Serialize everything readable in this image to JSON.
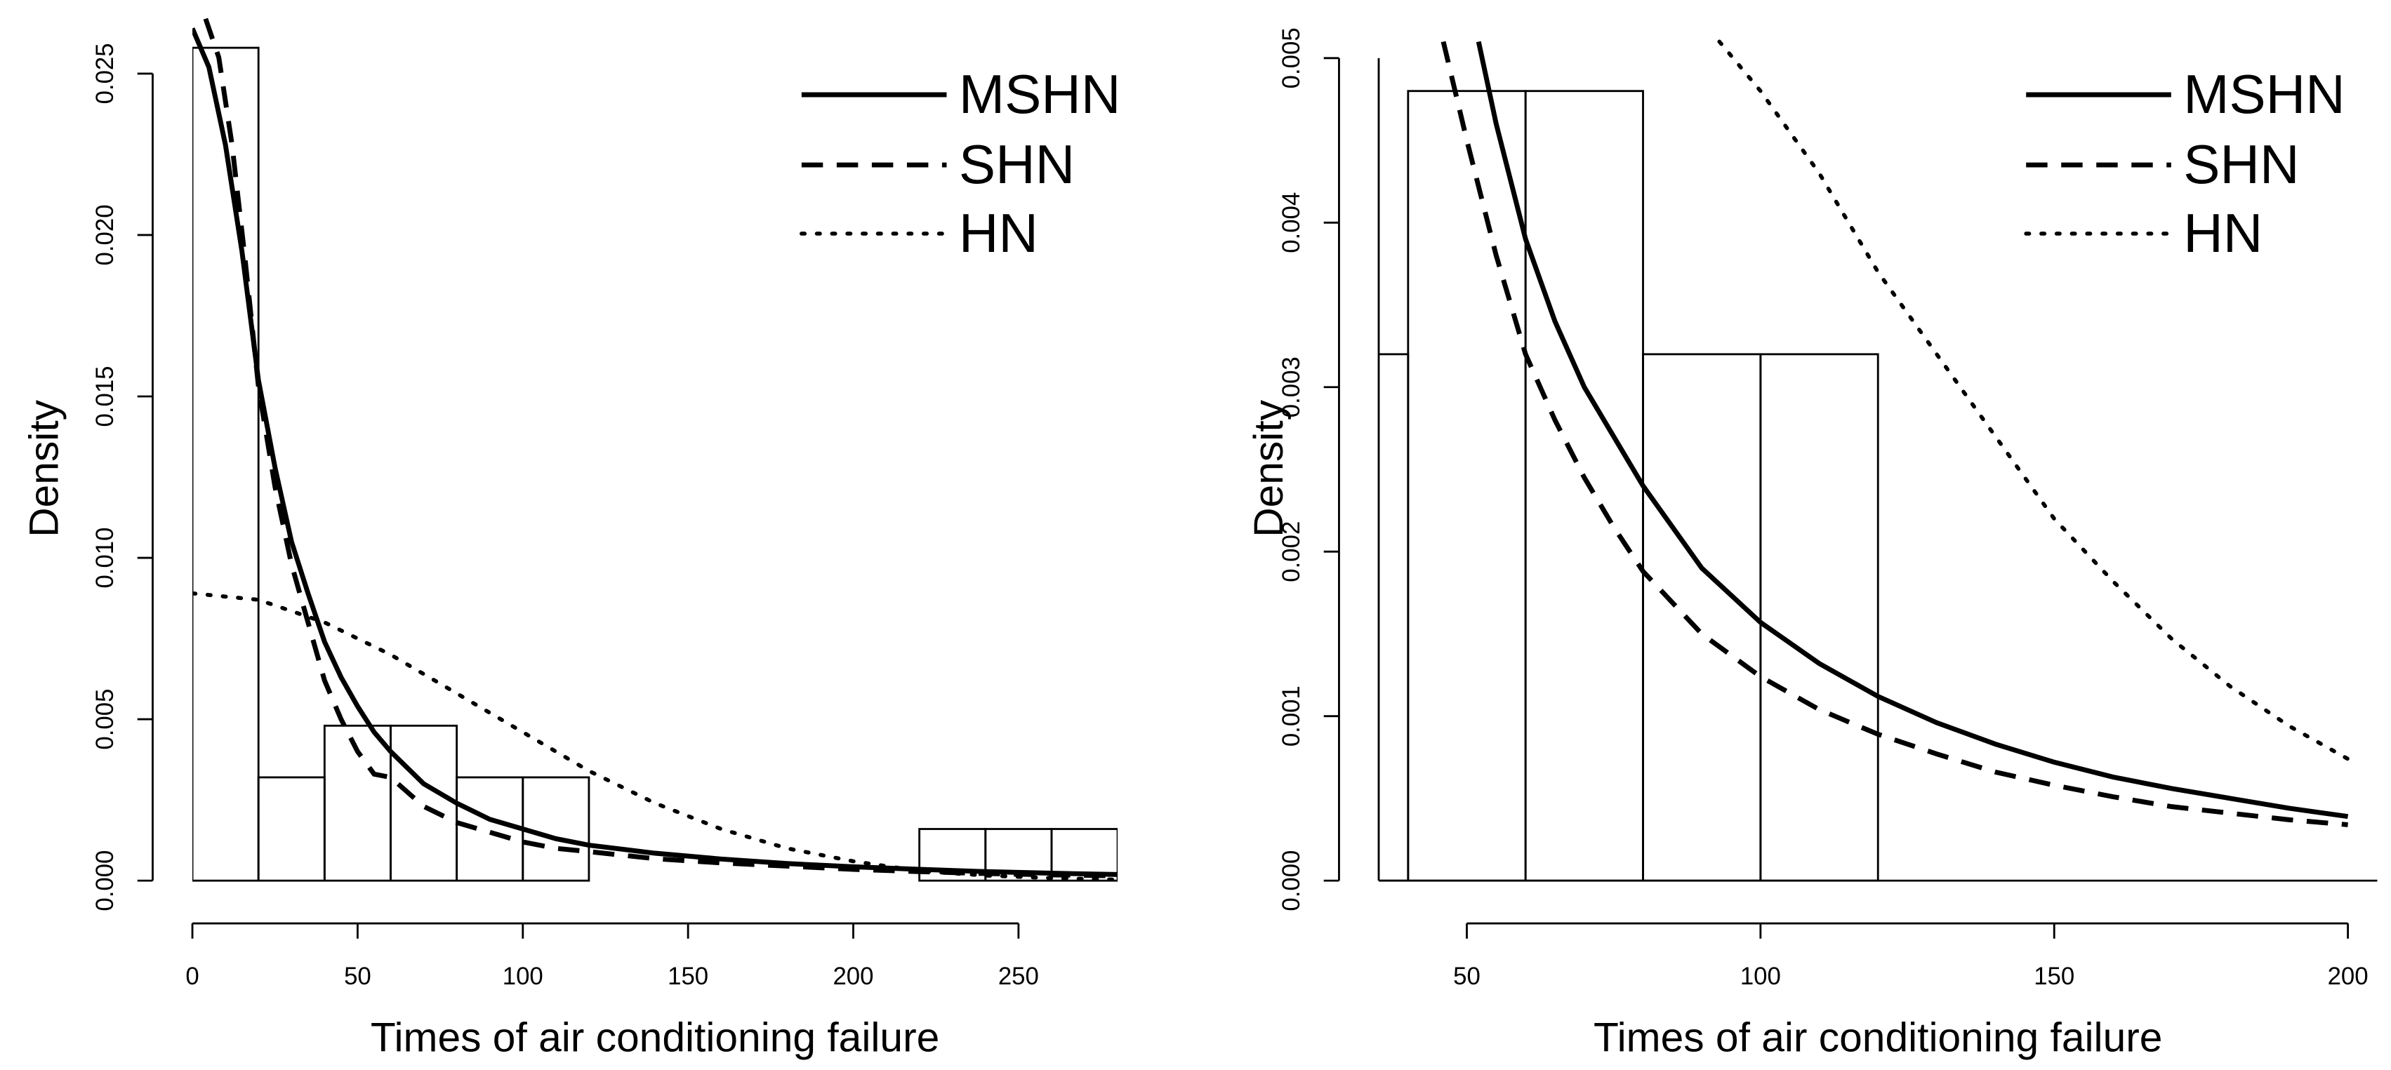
{
  "chart_data": [
    {
      "type": "histogram",
      "xlabel": "Times of air conditioning failure",
      "ylabel": "Density",
      "xlim": [
        0,
        280
      ],
      "ylim": [
        0,
        0.026
      ],
      "xticks": [
        "0",
        "50",
        "100",
        "150",
        "200",
        "250"
      ],
      "yticks": [
        "0.000",
        "0.005",
        "0.010",
        "0.015",
        "0.020",
        "0.025"
      ],
      "bins": [
        {
          "start": 0,
          "end": 20,
          "density": 0.0258
        },
        {
          "start": 20,
          "end": 40,
          "density": 0.0032
        },
        {
          "start": 40,
          "end": 60,
          "density": 0.0048
        },
        {
          "start": 60,
          "end": 80,
          "density": 0.0048
        },
        {
          "start": 80,
          "end": 100,
          "density": 0.0032
        },
        {
          "start": 100,
          "end": 120,
          "density": 0.0032
        },
        {
          "start": 220,
          "end": 240,
          "density": 0.0016
        },
        {
          "start": 240,
          "end": 260,
          "density": 0.0016
        },
        {
          "start": 260,
          "end": 280,
          "density": 0.0016
        }
      ],
      "series": [
        {
          "name": "MSHN",
          "style": "solid",
          "x": [
            0,
            5,
            10,
            15,
            20,
            25,
            30,
            35,
            40,
            45,
            50,
            55,
            60,
            70,
            80,
            90,
            100,
            110,
            120,
            140,
            160,
            180,
            200,
            220,
            240,
            260,
            280
          ],
          "y": [
            0.0264,
            0.0252,
            0.0228,
            0.0195,
            0.0155,
            0.0128,
            0.0105,
            0.0089,
            0.0074,
            0.0063,
            0.0054,
            0.0046,
            0.004,
            0.003,
            0.0024,
            0.0019,
            0.0016,
            0.0013,
            0.0011,
            0.00085,
            0.00067,
            0.00053,
            0.00043,
            0.00035,
            0.00028,
            0.00023,
            0.00019
          ]
        },
        {
          "name": "SHN",
          "style": "dashed",
          "x": [
            4,
            8,
            12,
            16,
            20,
            25,
            30,
            35,
            40,
            45,
            50,
            55,
            60,
            70,
            80,
            90,
            100,
            110,
            120,
            140,
            160,
            180,
            200,
            220,
            240,
            260,
            280
          ],
          "y": [
            0.0267,
            0.0255,
            0.0228,
            0.0192,
            0.0153,
            0.0122,
            0.0098,
            0.008,
            0.0062,
            0.005,
            0.004,
            0.0033,
            0.0032,
            0.0023,
            0.0018,
            0.0015,
            0.0012,
            0.001,
            0.0009,
            0.00068,
            0.00055,
            0.00045,
            0.00035,
            0.00028,
            0.00022,
            0.00018,
            0.00015
          ]
        },
        {
          "name": "HN",
          "style": "dotted",
          "x": [
            0,
            20,
            40,
            60,
            80,
            100,
            120,
            140,
            160,
            180,
            200,
            220,
            240,
            260,
            280
          ],
          "y": [
            0.0089,
            0.0087,
            0.008,
            0.007,
            0.0058,
            0.0046,
            0.0034,
            0.0024,
            0.0016,
            0.001,
            0.0006,
            0.0003,
            0.00016,
            8e-05,
            3e-05
          ]
        }
      ],
      "legend": {
        "position": "top-right",
        "entries": [
          "MSHN",
          "SHN",
          "HN"
        ]
      }
    },
    {
      "type": "histogram",
      "xlabel": "Times of air conditioning failure",
      "ylabel": "Density",
      "xlim": [
        35,
        205
      ],
      "ylim": [
        0,
        0.005
      ],
      "xticks": [
        "50",
        "100",
        "150",
        "200"
      ],
      "yticks": [
        "0.000",
        "0.001",
        "0.002",
        "0.003",
        "0.004",
        "0.005"
      ],
      "bins": [
        {
          "start": 20,
          "end": 40,
          "density": 0.0032
        },
        {
          "start": 40,
          "end": 60,
          "density": 0.0048
        },
        {
          "start": 60,
          "end": 80,
          "density": 0.0048
        },
        {
          "start": 80,
          "end": 100,
          "density": 0.0032
        },
        {
          "start": 100,
          "end": 120,
          "density": 0.0032
        }
      ],
      "series": [
        {
          "name": "MSHN",
          "style": "solid",
          "x": [
            52,
            55,
            60,
            65,
            70,
            75,
            80,
            90,
            100,
            110,
            120,
            130,
            140,
            150,
            160,
            170,
            180,
            190,
            200
          ],
          "y": [
            0.0051,
            0.0046,
            0.0039,
            0.0034,
            0.003,
            0.0027,
            0.0024,
            0.0019,
            0.00157,
            0.00132,
            0.00112,
            0.00096,
            0.00083,
            0.00072,
            0.00063,
            0.00056,
            0.0005,
            0.00044,
            0.00039
          ]
        },
        {
          "name": "SHN",
          "style": "dashed",
          "x": [
            46,
            50,
            55,
            60,
            65,
            70,
            75,
            80,
            90,
            100,
            110,
            120,
            130,
            140,
            150,
            160,
            170,
            180,
            190,
            200
          ],
          "y": [
            0.0051,
            0.0045,
            0.0038,
            0.0032,
            0.0028,
            0.00245,
            0.00215,
            0.00188,
            0.0015,
            0.00124,
            0.00104,
            0.00089,
            0.00077,
            0.00066,
            0.00058,
            0.00051,
            0.00045,
            0.00041,
            0.00037,
            0.00034
          ]
        },
        {
          "name": "HN",
          "style": "dotted",
          "x": [
            93,
            100,
            110,
            120,
            130,
            140,
            150,
            160,
            170,
            180,
            190,
            200
          ],
          "y": [
            0.0051,
            0.0048,
            0.0043,
            0.0037,
            0.0032,
            0.0027,
            0.0022,
            0.00182,
            0.00147,
            0.00118,
            0.00094,
            0.00074
          ]
        }
      ],
      "legend": {
        "position": "top-right",
        "entries": [
          "MSHN",
          "SHN",
          "HN"
        ]
      }
    }
  ]
}
